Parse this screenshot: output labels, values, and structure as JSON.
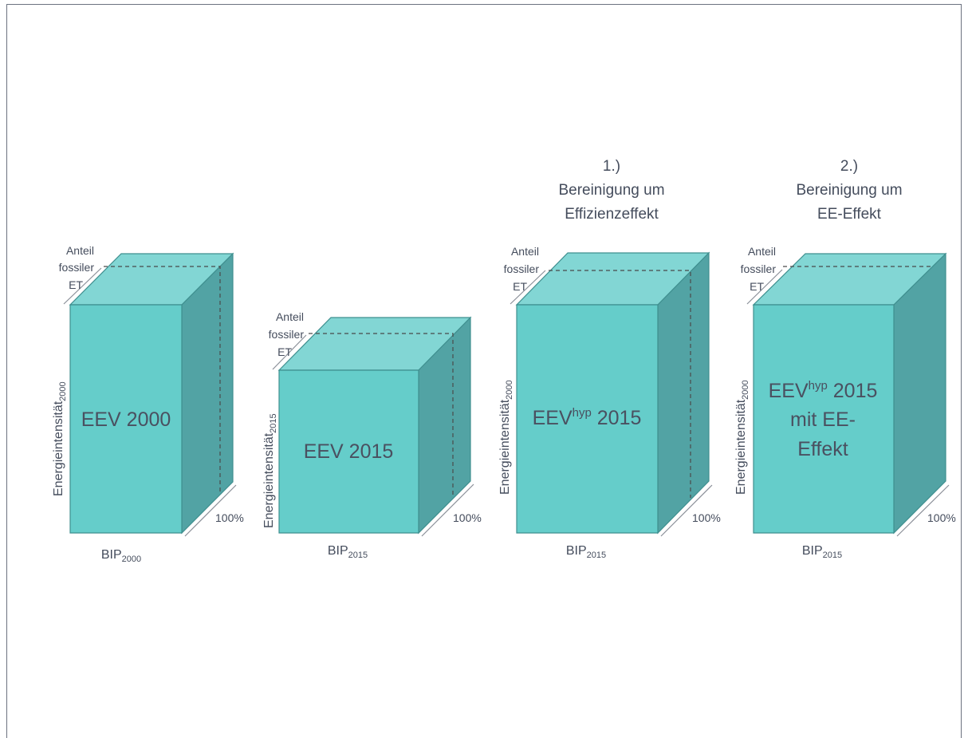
{
  "frame": {
    "border_color": "#6b7280"
  },
  "colors": {
    "front": "#65cdca",
    "top": "#82d6d4",
    "side": "#52a3a4",
    "text": "#444c5c"
  },
  "boxes": [
    {
      "heading": [],
      "label_lines": [
        "EEV 2000"
      ],
      "label_superscript": "",
      "vertical_axis": "Energieintensität",
      "vertical_axis_sub": "2000",
      "horizontal_axis": "BIP",
      "horizontal_axis_sub": "2000",
      "depth_label": "100%",
      "top_label": [
        "Anteil",
        "fossiler",
        "ET"
      ]
    },
    {
      "heading": [],
      "label_lines": [
        "EEV 2015"
      ],
      "label_superscript": "",
      "vertical_axis": "Energieintensität",
      "vertical_axis_sub": "2015",
      "horizontal_axis": "BIP",
      "horizontal_axis_sub": "2015",
      "depth_label": "100%",
      "top_label": [
        "Anteil",
        "fossiler",
        "ET"
      ]
    },
    {
      "heading": [
        "1.)",
        "Bereinigung um",
        "Effizienzeffekt"
      ],
      "label_lines": [
        "EEV",
        " 2015"
      ],
      "label_superscript": "hyp",
      "vertical_axis": "Energieintensität",
      "vertical_axis_sub": "2000",
      "horizontal_axis": "BIP",
      "horizontal_axis_sub": "2015",
      "depth_label": "100%",
      "top_label": [
        "Anteil",
        "fossiler",
        "ET"
      ]
    },
    {
      "heading": [
        "2.)",
        "Bereinigung um",
        "EE-Effekt"
      ],
      "label_lines": [
        "EEV",
        " 2015",
        "mit EE-",
        "Effekt"
      ],
      "label_superscript": "hyp",
      "vertical_axis": "Energieintensität",
      "vertical_axis_sub": "2000",
      "horizontal_axis": "BIP",
      "horizontal_axis_sub": "2015",
      "depth_label": "100%",
      "top_label": [
        "Anteil",
        "fossiler",
        "ET"
      ]
    }
  ]
}
